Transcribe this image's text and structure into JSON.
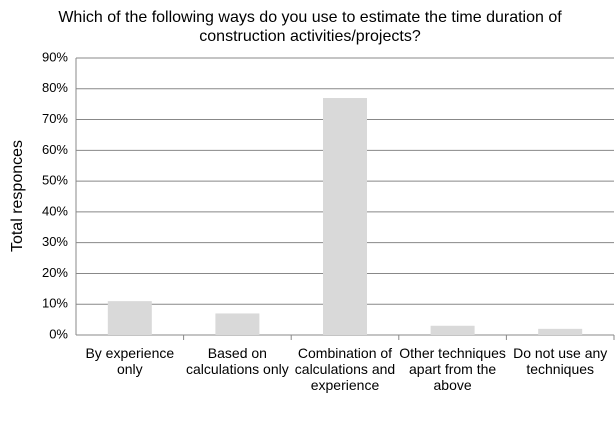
{
  "chart_data": {
    "type": "bar",
    "title": "Which of the following ways do you use to estimate the time duration of construction activities/projects?",
    "y_label": "Total responces",
    "categories": [
      "By experience only",
      "Based on calculations only",
      "Combination of calculations and experience",
      "Other techniques apart from the above",
      "Do not use any techniques"
    ],
    "values": [
      11,
      7,
      77,
      3,
      2
    ],
    "color": "#d9d9d9",
    "ylim": [
      0,
      90
    ],
    "yticks": [
      {
        "value": 0,
        "label": "0%"
      },
      {
        "value": 10,
        "label": "10%"
      },
      {
        "value": 20,
        "label": "20%"
      },
      {
        "value": 30,
        "label": "30%"
      },
      {
        "value": 40,
        "label": "40%"
      },
      {
        "value": 50,
        "label": "50%"
      },
      {
        "value": 60,
        "label": "60%"
      },
      {
        "value": 70,
        "label": "70%"
      },
      {
        "value": 80,
        "label": "80%"
      },
      {
        "value": 90,
        "label": "90%"
      }
    ],
    "grid": true
  }
}
